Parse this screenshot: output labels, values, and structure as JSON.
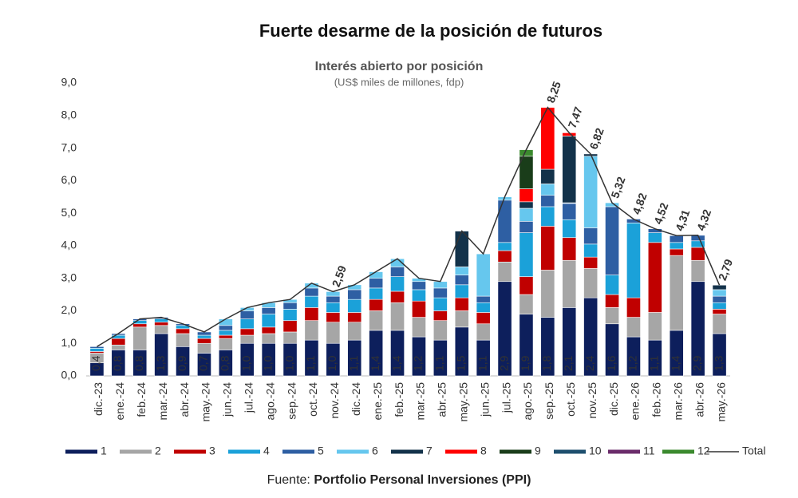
{
  "chart_data": {
    "type": "stacked_bar_line",
    "title": "Fuerte desarme de la posición de futuros",
    "subtitle": "Interés abierto por posición",
    "subtitle2": "(US$ miles de millones, fdp)",
    "source_prefix": "Fuente:",
    "source": "Portfolio Personal Inversiones (PPI)",
    "categories": [
      "dic.-23",
      "ene.-24",
      "feb.-24",
      "mar.-24",
      "abr.-24",
      "may.-24",
      "jun.-24",
      "jul.-24",
      "ago.-24",
      "sep.-24",
      "oct.-24",
      "nov.-24",
      "dic.-24",
      "ene.-25",
      "feb.-25",
      "mar.-25",
      "abr.-25",
      "may.-25",
      "jun.-25",
      "jul.-25",
      "ago.-25",
      "sep.-25",
      "oct.-25",
      "nov.-25",
      "dic.-25",
      "ene.-26",
      "feb.-26",
      "mar.-26",
      "abr.-26",
      "may.-26"
    ],
    "ylim": [
      0,
      9
    ],
    "yticks": [
      {
        "value": 0,
        "label": "0,0"
      },
      {
        "value": 1,
        "label": "1,0"
      },
      {
        "value": 2,
        "label": "2,0"
      },
      {
        "value": 3,
        "label": "3,0"
      },
      {
        "value": 4,
        "label": "4,0"
      },
      {
        "value": 5,
        "label": "5,0"
      },
      {
        "value": 6,
        "label": "6,0"
      },
      {
        "value": 7,
        "label": "7,0"
      },
      {
        "value": 8,
        "label": "8,0"
      },
      {
        "value": 9,
        "label": "9,0"
      }
    ],
    "grid": false,
    "legend": "bottom",
    "series": [
      {
        "name": "1",
        "color": "#0d1f5c",
        "values": [
          0.4,
          0.8,
          0.8,
          1.3,
          0.9,
          0.7,
          0.8,
          1.0,
          1.0,
          1.0,
          1.1,
          1.0,
          1.1,
          1.4,
          1.4,
          1.2,
          1.1,
          1.5,
          1.1,
          2.9,
          1.9,
          1.8,
          2.1,
          2.4,
          1.6,
          1.2,
          1.1,
          1.4,
          2.9,
          1.3
        ],
        "value_labels": [
          "0,4",
          "0,8",
          "0,8",
          "1,3",
          "0,9",
          "0,7",
          "0,8",
          "1,0",
          "1,0",
          "1,0",
          "1,1",
          "1,0",
          "1,1",
          "1,4",
          "1,4",
          "1,2",
          "1,1",
          "1,5",
          "1,1",
          "2,9",
          "1,9",
          "1,8",
          "2,1",
          "2,4",
          "1,6",
          "1,2",
          "1,1",
          "1,4",
          "2,9",
          "1,3"
        ]
      },
      {
        "name": "2",
        "color": "#a6a6a6",
        "values": [
          0.3,
          0.15,
          0.7,
          0.25,
          0.4,
          0.3,
          0.35,
          0.25,
          0.3,
          0.35,
          0.6,
          0.65,
          0.55,
          0.6,
          0.85,
          0.6,
          0.6,
          0.5,
          0.5,
          0.6,
          0.6,
          1.45,
          1.45,
          0.9,
          0.5,
          0.6,
          0.85,
          2.3,
          0.65,
          0.6
        ]
      },
      {
        "name": "3",
        "color": "#c00000",
        "values": [
          0.05,
          0.2,
          0.1,
          0.1,
          0.15,
          0.15,
          0.1,
          0.2,
          0.2,
          0.35,
          0.4,
          0.3,
          0.3,
          0.35,
          0.35,
          0.5,
          0.3,
          0.4,
          0.35,
          0.35,
          0.55,
          1.35,
          0.7,
          0.35,
          0.4,
          0.6,
          2.15,
          0.2,
          0.4,
          0.15
        ]
      },
      {
        "name": "4",
        "color": "#1ba1d9",
        "values": [
          0.1,
          0.1,
          0.1,
          0.1,
          0.1,
          0.1,
          0.15,
          0.3,
          0.4,
          0.35,
          0.35,
          0.3,
          0.4,
          0.35,
          0.45,
          0.35,
          0.4,
          0.4,
          0.3,
          0.25,
          1.35,
          0.6,
          0.55,
          0.4,
          0.6,
          2.3,
          0.3,
          0.2,
          0.2,
          0.2
        ]
      },
      {
        "name": "5",
        "color": "#2e5fa3",
        "values": [
          0.05,
          0.05,
          0.05,
          0.05,
          0.05,
          0.1,
          0.15,
          0.25,
          0.2,
          0.2,
          0.25,
          0.2,
          0.3,
          0.3,
          0.3,
          0.25,
          0.3,
          0.3,
          0.2,
          1.3,
          0.35,
          0.35,
          0.5,
          0.5,
          2.1,
          0.12,
          0.12,
          0.21,
          0.17,
          0.2
        ]
      },
      {
        "name": "6",
        "color": "#66c7ee",
        "values": [
          0,
          0,
          0,
          0,
          0,
          0,
          0.2,
          0.1,
          0.15,
          0.1,
          0.15,
          0.14,
          0.15,
          0.2,
          0.25,
          0.1,
          0.2,
          0.25,
          1.3,
          0.1,
          0.4,
          0.35,
          0.02,
          2.2,
          0.12,
          0,
          0,
          0,
          0,
          0.2
        ]
      },
      {
        "name": "7",
        "color": "#13324a",
        "values": [
          0,
          0,
          0,
          0,
          0,
          0,
          0,
          0,
          0,
          0,
          0,
          0,
          0,
          0,
          0,
          0,
          0,
          1.1,
          0,
          0,
          0.2,
          0.45,
          2.05,
          0.07,
          0,
          0,
          0,
          0,
          0,
          0.14
        ]
      },
      {
        "name": "8",
        "color": "#ff0000",
        "values": [
          0,
          0,
          0,
          0,
          0,
          0,
          0,
          0,
          0,
          0,
          0,
          0,
          0,
          0,
          0,
          0,
          0,
          0,
          0,
          0,
          0.4,
          1.9,
          0.1,
          0,
          0,
          0,
          0,
          0,
          0,
          0
        ]
      },
      {
        "name": "9",
        "color": "#1a3d1a",
        "values": [
          0,
          0,
          0,
          0,
          0,
          0,
          0,
          0,
          0,
          0,
          0,
          0,
          0,
          0,
          0,
          0,
          0,
          0,
          0,
          0,
          1.0,
          0,
          0,
          0,
          0,
          0,
          0,
          0,
          0,
          0
        ]
      },
      {
        "name": "10",
        "color": "#1e4f6e",
        "values": [
          0,
          0,
          0,
          0,
          0,
          0,
          0,
          0,
          0,
          0,
          0,
          0,
          0,
          0,
          0,
          0,
          0,
          0,
          0,
          0,
          0,
          0,
          0,
          0,
          0,
          0,
          0,
          0,
          0,
          0
        ]
      },
      {
        "name": "11",
        "color": "#6b2c6b",
        "values": [
          0,
          0,
          0,
          0,
          0,
          0,
          0,
          0,
          0,
          0,
          0,
          0,
          0,
          0,
          0,
          0,
          0,
          0,
          0,
          0,
          0,
          0,
          0,
          0,
          0,
          0,
          0,
          0,
          0,
          0
        ]
      },
      {
        "name": "12",
        "color": "#3b8a2e",
        "values": [
          0,
          0,
          0,
          0,
          0,
          0,
          0,
          0,
          0,
          0,
          0,
          0,
          0,
          0,
          0,
          0,
          0,
          0,
          0,
          0,
          0.2,
          0,
          0,
          0,
          0,
          0,
          0,
          0,
          0,
          0
        ]
      }
    ],
    "total": {
      "name": "Total",
      "color": "#333333",
      "values": [
        0.9,
        1.3,
        1.75,
        1.8,
        1.6,
        1.35,
        1.75,
        2.1,
        2.25,
        2.35,
        2.85,
        2.59,
        2.8,
        3.2,
        3.6,
        3.0,
        2.9,
        4.45,
        3.75,
        5.5,
        6.95,
        8.25,
        7.47,
        6.82,
        5.32,
        4.82,
        4.52,
        4.31,
        4.32,
        2.79
      ],
      "value_labels": [
        null,
        null,
        null,
        null,
        null,
        null,
        null,
        null,
        null,
        null,
        null,
        "2,59",
        null,
        null,
        null,
        null,
        null,
        null,
        null,
        null,
        null,
        "8,25",
        "7,47",
        "6,82",
        "5,32",
        "4,82",
        "4,52",
        "4,31",
        "4,32",
        "2,79"
      ]
    }
  }
}
